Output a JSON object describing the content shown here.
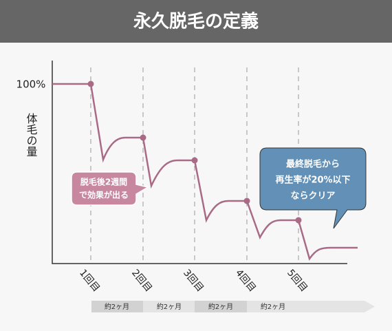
{
  "header": {
    "title": "永久脱毛の定義"
  },
  "y_axis": {
    "top_label": "100%",
    "title": "体毛の量"
  },
  "x_axis": {
    "labels": [
      "1回目",
      "2回目",
      "3回目",
      "4回目",
      "5回目"
    ]
  },
  "callouts": [
    {
      "lines": [
        "脱毛後2週間",
        "で効果が出る"
      ]
    },
    {
      "lines": [
        "最終脱毛から",
        "再生率が20%以下",
        "ならクリア"
      ]
    }
  ],
  "timeline": {
    "labels": [
      "約2ヶ月",
      "約2ヶ月",
      "約2ヶ月",
      "約2ヶ月"
    ]
  }
}
